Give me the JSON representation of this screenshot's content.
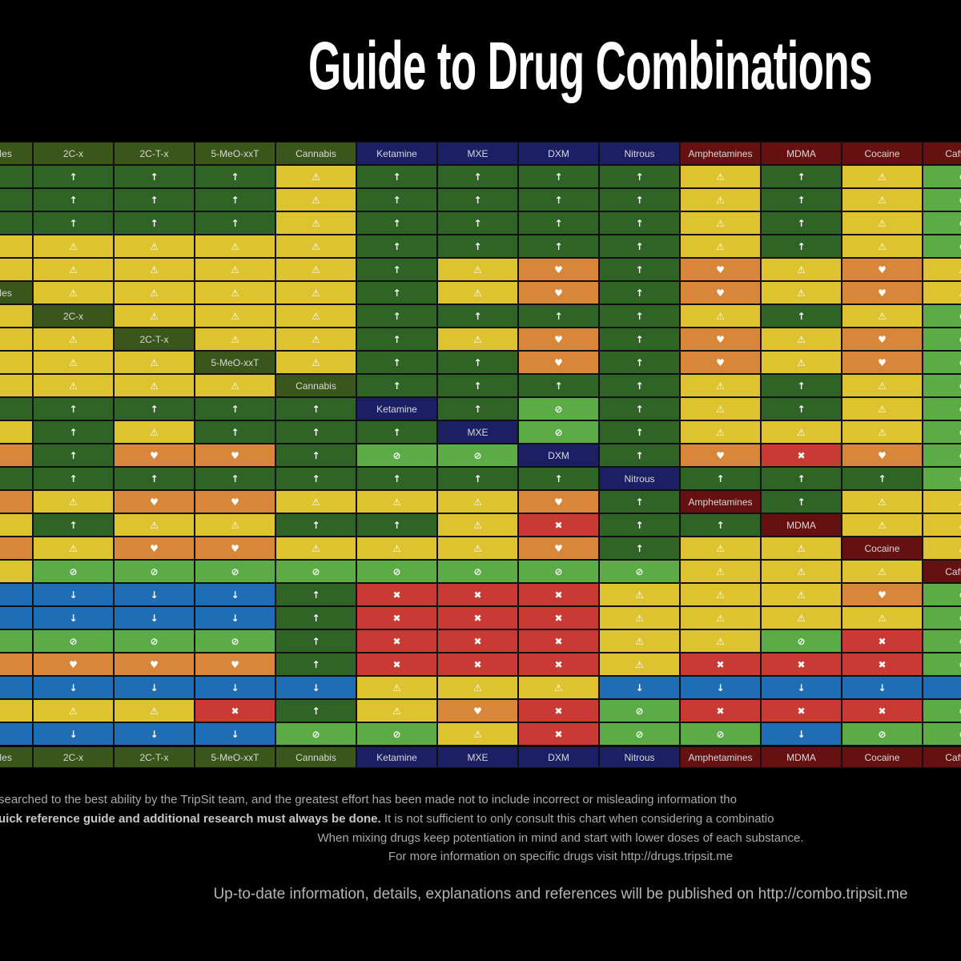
{
  "title": "Guide to Drug Combinations",
  "colors": {
    "background": "#000000",
    "low_risk_synergy": "#2f6426",
    "caution": "#dcc32f",
    "unsafe": "#d8863a",
    "dangerous": "#c93a35",
    "low_risk_no_synergy": "#5bab46",
    "low_risk_decrease": "#1f6db4",
    "group_psychedelic": "#3a561a",
    "group_dissociative": "#1c1f63",
    "group_stimulant": "#661111"
  },
  "icons": {
    "U": {
      "name": "arrow-up-icon",
      "glyph": "↑",
      "color_key": "low_risk_synergy"
    },
    "W": {
      "name": "warning-icon",
      "glyph": "⚠",
      "color_key": "caution"
    },
    "H": {
      "name": "heart-icon",
      "glyph": "♥",
      "color_key": "unsafe"
    },
    "X": {
      "name": "cross-icon",
      "glyph": "✖",
      "color_key": "dangerous"
    },
    "O": {
      "name": "no-synergy-icon",
      "glyph": "⊘",
      "color_key": "low_risk_no_synergy"
    },
    "D": {
      "name": "arrow-down-icon",
      "glyph": "↓",
      "color_key": "low_risk_decrease"
    }
  },
  "chart_data": {
    "type": "table",
    "title": "Guide to Drug Combinations",
    "columns": [
      {
        "name": "NBOMes",
        "group": "psychedelic",
        "cells": "UUUWWLWWWWUWHUHWHWDDOHDWD"
      },
      {
        "name": "2C-x",
        "group": "psychedelic",
        "cells": "UUUWWWLWWWUUUUWUWODDOHDWD"
      },
      {
        "name": "2C-T-x",
        "group": "psychedelic",
        "cells": "UUUWWWWLWWUWHUHWHODDOHDWD"
      },
      {
        "name": "5-MeO-xxT",
        "group": "psychedelic",
        "cells": "UUUWWWWWLWUUHUHWHODDOHDXD"
      },
      {
        "name": "Cannabis",
        "group": "psychedelic",
        "cells": "WWWWWWWWWLUUUUWUWOUUUUDUO"
      },
      {
        "name": "Ketamine",
        "group": "dissociative",
        "cells": "UUUUUUUUUULUOUWUWOXXXXWWO"
      },
      {
        "name": "MXE",
        "group": "dissociative",
        "cells": "UUUUWWUWUUULOUWWWOXXXXWHW"
      },
      {
        "name": "DXM",
        "group": "dissociative",
        "cells": "UUUUHHUHHUOOLUHXHOXXXXWXX"
      },
      {
        "name": "Nitrous",
        "group": "dissociative",
        "cells": "UUUUUUUUUUUUULUUUOWWWWDOO"
      },
      {
        "name": "Amphetamines",
        "group": "stimulant",
        "cells": "WWWWHHWHHWWWHULUWWWWWXDXO"
      },
      {
        "name": "MDMA",
        "group": "stimulant",
        "cells": "UUUUWWUWWUUWXUULWWWWOXDXD"
      },
      {
        "name": "Cocaine",
        "group": "stimulant",
        "cells": "WWWWHHWHHWWWHUWWLWHWXXDXO"
      },
      {
        "name": "Caffeine",
        "group": "stimulant",
        "cells": "OOOOWWOOOOOOOOWWWLOOOODOO"
      }
    ]
  },
  "footer": {
    "line1": "searched to the best ability by the TripSit team, and the greatest effort has been made not to include incorrect or misleading information tho",
    "line2_bold": "uick reference guide and additional research must always be done.",
    "line2_rest": " It is not sufficient to only consult this chart when considering a combinatio",
    "line3": "When mixing drugs keep potentiation in mind and start with lower doses of each substance.",
    "line4": "For more information on specific drugs visit http://drugs.tripsit.me",
    "line5": "Up-to-date information, details, explanations and references will be published on http://combo.tripsit.me"
  }
}
